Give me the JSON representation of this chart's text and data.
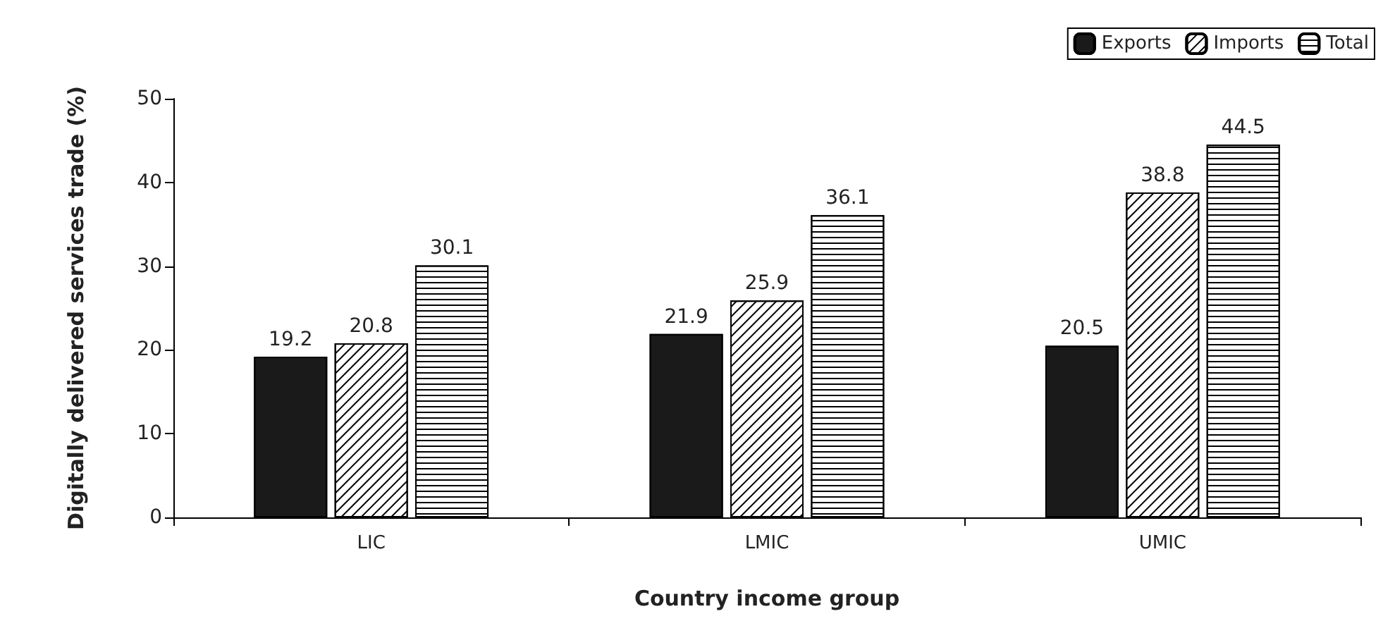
{
  "chart_data": {
    "type": "bar",
    "xlabel": "Country income group",
    "ylabel": "Digitally delivered services trade (%)",
    "categories": [
      "LIC",
      "LMIC",
      "UMIC"
    ],
    "series": [
      {
        "name": "Exports",
        "color": "#1a1a1a",
        "values": [
          19.2,
          21.9,
          20.5
        ]
      },
      {
        "name": "Imports",
        "color": "#ffffff",
        "values": [
          20.8,
          25.9,
          38.8
        ]
      },
      {
        "name": "Total",
        "color": "#ffffff",
        "values": [
          30.1,
          36.1,
          44.5
        ]
      }
    ],
    "ylim": [
      0,
      50
    ],
    "yticks": [
      0,
      10,
      20,
      30,
      40,
      50
    ],
    "grid": false,
    "legend": "top right",
    "data_labels": true
  }
}
